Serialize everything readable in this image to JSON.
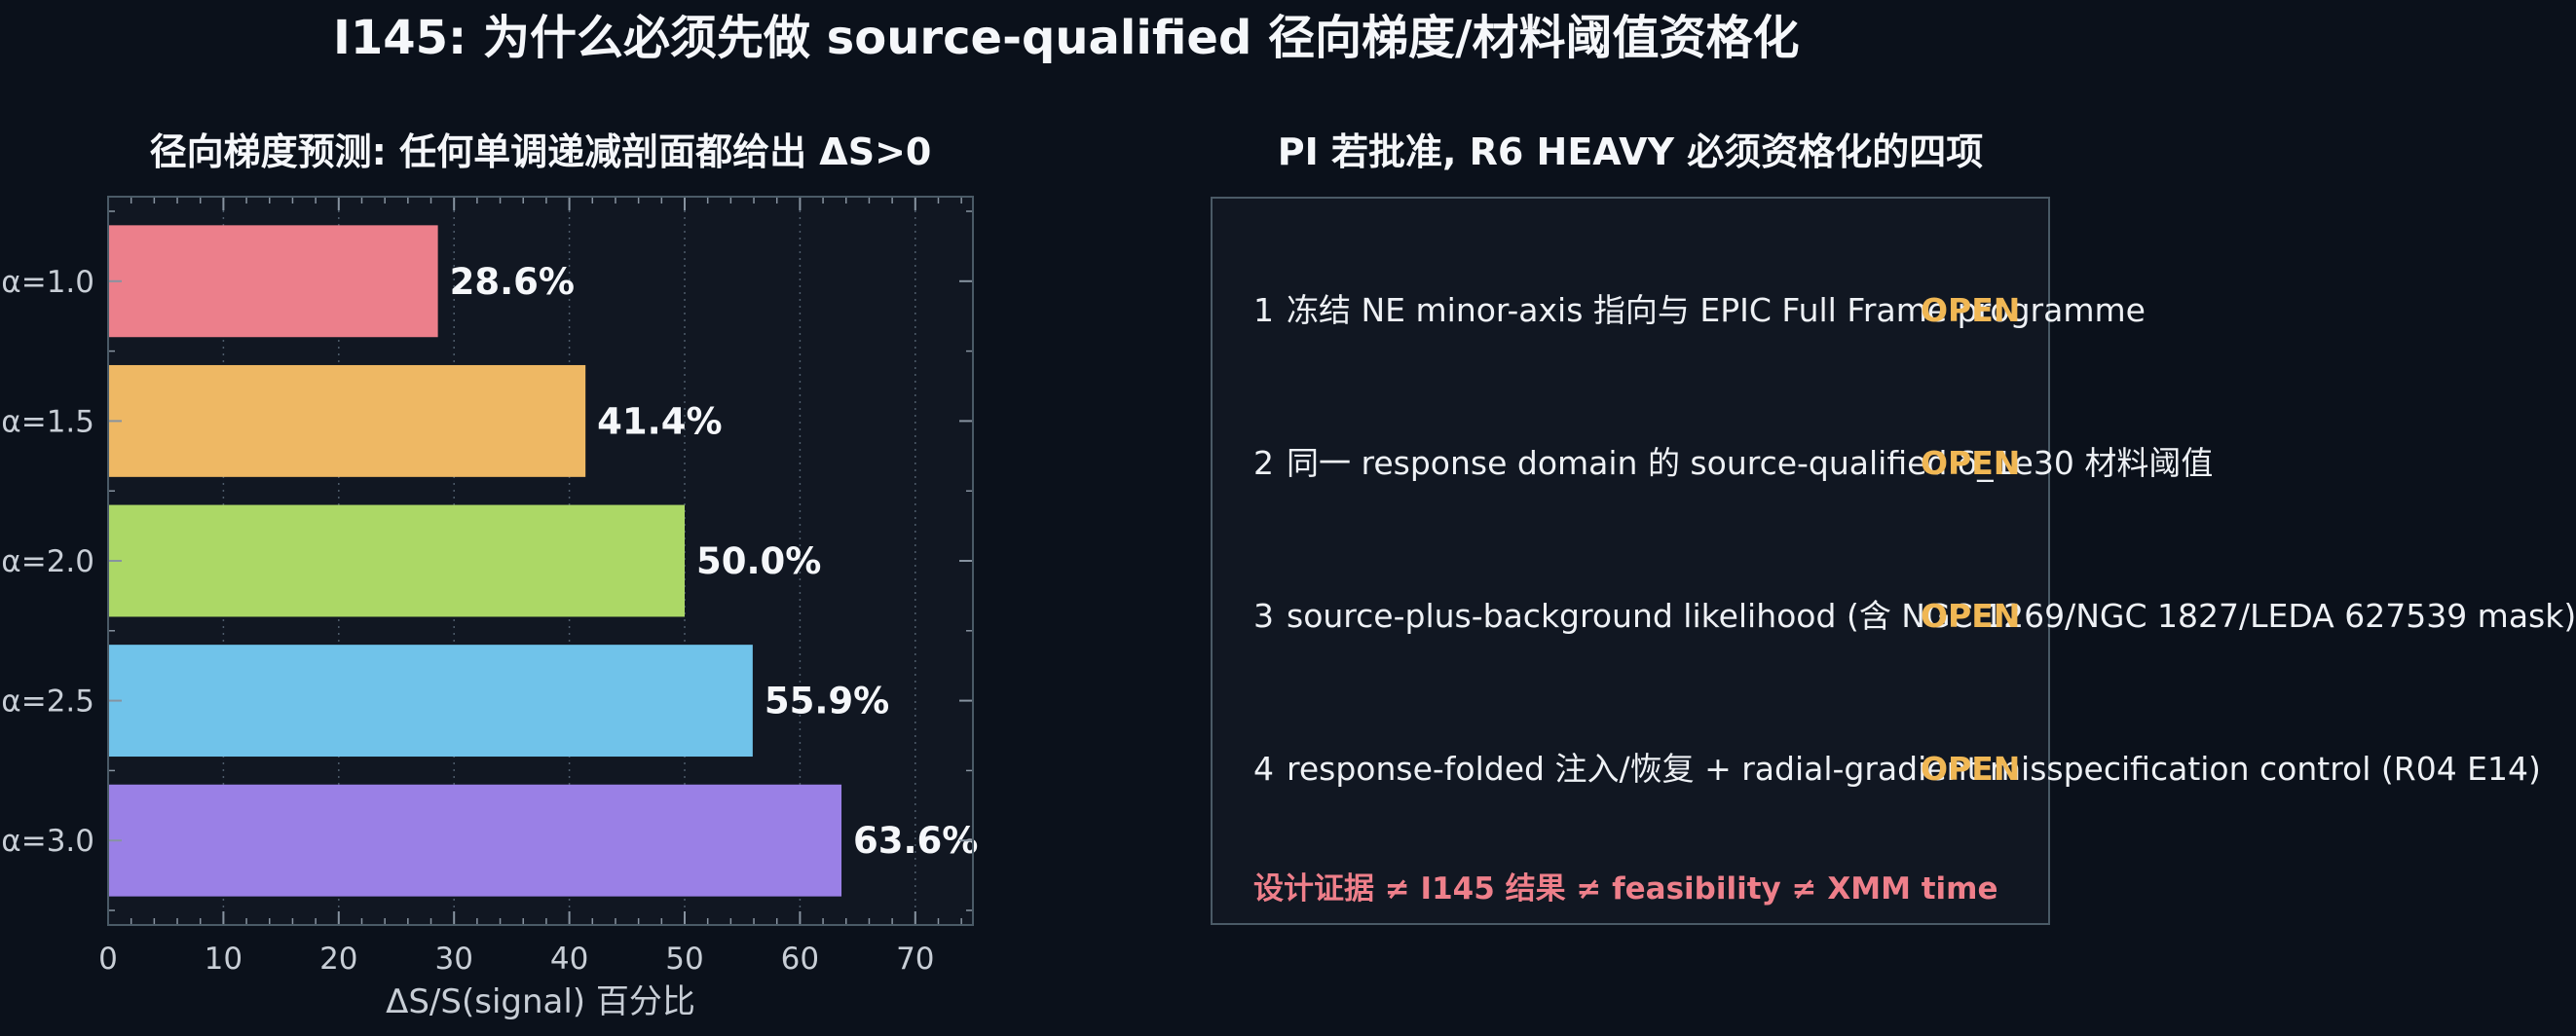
{
  "figure": {
    "title": "I145: 为什么必须先做 source-qualified 径向梯度/材料阈值资格化"
  },
  "colors": {
    "background": "#0b111b",
    "panel": "#111722",
    "accent_open": "#f0b754",
    "footnote": "#ee7f8a"
  },
  "chart_data": {
    "type": "bar",
    "orientation": "horizontal",
    "title": "径向梯度预测: 任何单调递减剖面都给出 ΔS>0",
    "xlabel": "ΔS/S(signal) 百分比",
    "ylabel": "",
    "categories": [
      "α=1.0",
      "α=1.5",
      "α=2.0",
      "α=2.5",
      "α=3.0"
    ],
    "values": [
      28.6,
      41.4,
      50.0,
      55.9,
      63.6
    ],
    "value_labels": [
      "28.6%",
      "41.4%",
      "50.0%",
      "55.9%",
      "63.6%"
    ],
    "bar_colors": [
      "#ec7f8b",
      "#eeb864",
      "#acd866",
      "#70c3ea",
      "#9a80e6"
    ],
    "xlim": [
      0,
      75
    ],
    "xticks": [
      0,
      10,
      20,
      30,
      40,
      50,
      60,
      70
    ],
    "grid": "x-major dotted",
    "legend": "none"
  },
  "checklist": {
    "title": "PI 若批准, R6 HEAVY 必须资格化的四项",
    "items": [
      {
        "num": "1",
        "text": "冻结 NE minor-axis 指向与 EPIC Full Frame programme",
        "status": "OPEN"
      },
      {
        "num": "2",
        "text": "同一 response domain 的 source-qualified δ_1e30 材料阈值",
        "status": "OPEN"
      },
      {
        "num": "3",
        "text": "source-plus-background likelihood (含 NGC 1269/NGC 1827/LEDA 627539 mask)",
        "status": "OPEN"
      },
      {
        "num": "4",
        "text": "response-folded 注入/恢复 + radial-gradient misspecification control (R04 E14)",
        "status": "OPEN"
      }
    ],
    "footnote": "设计证据 ≠ I145 结果 ≠ feasibility ≠ XMM time"
  }
}
